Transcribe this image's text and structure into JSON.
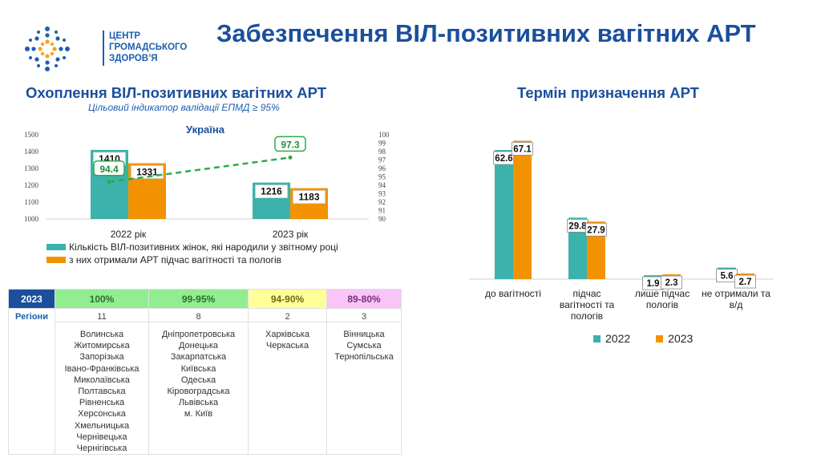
{
  "logo": {
    "lines": [
      "ЦЕНТР",
      "ГРОМАДСЬКОГО",
      "ЗДОРОВ’Я"
    ],
    "brand_blue": "#1d5fae",
    "brand_orange": "#f5a623"
  },
  "title": "Забезпечення ВІЛ-позитивних вагітних АРТ",
  "left": {
    "title": "Охоплення ВІЛ-позитивних вагітних АРТ",
    "subtitle": "Цільовий індикатор валідації ЕПМД ≥ 95%"
  },
  "right": {
    "title": "Термін призначення АРТ"
  },
  "chart_data": [
    {
      "type": "bar",
      "title": "Україна",
      "categories": [
        "2022 рік",
        "2023 рік"
      ],
      "series": [
        {
          "name": "Кількість ВІЛ-позитивних жінок, які народили у звітному році",
          "color": "#3bb2ab",
          "values": [
            1410,
            1216
          ]
        },
        {
          "name": "з них отримали АРТ підчас вагітності та пологів",
          "color": "#f39200",
          "values": [
            1331,
            1183
          ]
        }
      ],
      "line_series": {
        "values": [
          94.4,
          97.3
        ],
        "color": "#2eaa4a",
        "style": "dashed",
        "axis": "right"
      },
      "ylim": [
        1000,
        1500
      ],
      "yticks": [
        "1000",
        "1100",
        "1200",
        "1300",
        "1400",
        "1500"
      ],
      "y2lim": [
        90,
        100
      ],
      "y2ticks": [
        "90",
        "91",
        "92",
        "93",
        "94",
        "95",
        "96",
        "97",
        "98",
        "99",
        "100"
      ],
      "legend": "bottom"
    },
    {
      "type": "bar",
      "categories": [
        [
          "до вагітності"
        ],
        [
          "підчас",
          "вагітності та",
          "пологів"
        ],
        [
          "лише підчас",
          "пологів"
        ],
        [
          "не отримали та",
          "в/д"
        ]
      ],
      "series": [
        {
          "name": "2022",
          "color": "#3bb2ab",
          "values": [
            62.6,
            29.8,
            1.9,
            5.6
          ]
        },
        {
          "name": "2023",
          "color": "#f39200",
          "values": [
            67.1,
            27.9,
            2.3,
            2.7
          ]
        }
      ],
      "ylim": [
        0,
        70
      ],
      "legend": "bottom"
    }
  ],
  "table": {
    "year": "2023",
    "headers": [
      "100%",
      "99-95%",
      "94-90%",
      "89-80%"
    ],
    "row_label": "Регіони",
    "counts": [
      "11",
      "8",
      "2",
      "3"
    ],
    "regions": [
      [
        "Волинська",
        "Житомирська",
        "Запорізька",
        "Івано-Франківська",
        "Миколаївська",
        "Полтавська",
        "Рівненська",
        "Херсонська",
        "Хмельницька",
        "Чернівецька",
        "Чернігівська"
      ],
      [
        "Дніпропетровська",
        "Донецька",
        "Закарпатська",
        "Київська",
        "Одеська",
        "Кіровоградська",
        "Львівська",
        "м. Київ"
      ],
      [
        "Харківська",
        "Черкаська"
      ],
      [
        "Вінницька",
        "Сумська",
        "Тернопільська"
      ]
    ]
  }
}
